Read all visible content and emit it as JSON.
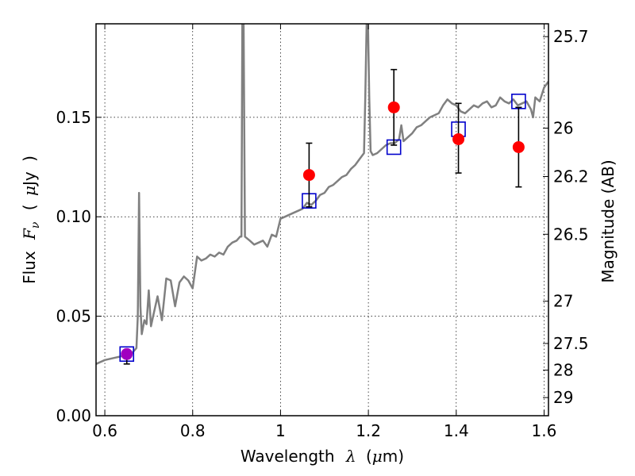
{
  "chart_data": {
    "type": "scatter",
    "xlabel": {
      "prefix": "Wavelength",
      "symbol": "λ",
      "unit_open": "(",
      "unit_mu": "μ",
      "unit_rest": "m)"
    },
    "ylabel": {
      "prefix": "Flux",
      "symbol": "F",
      "subscript": "ν",
      "unit_open": "(",
      "unit_mu": "μ",
      "unit_rest": "Jy",
      "unit_close": ")"
    },
    "y2label": "Magnitude (AB)",
    "xlim": [
      0.58,
      1.61
    ],
    "ylim": [
      0.0,
      0.197
    ],
    "grid": true,
    "x_ticks": [
      {
        "value": 0.6,
        "label": "0.6"
      },
      {
        "value": 0.8,
        "label": "0.8"
      },
      {
        "value": 1.0,
        "label": "1"
      },
      {
        "value": 1.2,
        "label": "1.2"
      },
      {
        "value": 1.4,
        "label": "1.4"
      },
      {
        "value": 1.6,
        "label": "1.6"
      }
    ],
    "y_ticks": [
      {
        "value": 0.0,
        "label": "0.00"
      },
      {
        "value": 0.05,
        "label": "0.05"
      },
      {
        "value": 0.1,
        "label": "0.10"
      },
      {
        "value": 0.15,
        "label": "0.15"
      }
    ],
    "y2_ticks": [
      {
        "value": 25.7,
        "label": "25.7"
      },
      {
        "value": 26.0,
        "label": "26"
      },
      {
        "value": 26.2,
        "label": "26.2"
      },
      {
        "value": 26.5,
        "label": "26.5"
      },
      {
        "value": 27.0,
        "label": "27"
      },
      {
        "value": 27.5,
        "label": "27.5"
      },
      {
        "value": 28.0,
        "label": "28"
      },
      {
        "value": 29.0,
        "label": "29"
      }
    ],
    "spectrum": {
      "color": "#808080",
      "points": [
        [
          0.58,
          0.026
        ],
        [
          0.6,
          0.028
        ],
        [
          0.62,
          0.029
        ],
        [
          0.64,
          0.03
        ],
        [
          0.66,
          0.031
        ],
        [
          0.672,
          0.034
        ],
        [
          0.675,
          0.05
        ],
        [
          0.678,
          0.112
        ],
        [
          0.681,
          0.055
        ],
        [
          0.684,
          0.041
        ],
        [
          0.69,
          0.048
        ],
        [
          0.695,
          0.046
        ],
        [
          0.7,
          0.063
        ],
        [
          0.705,
          0.045
        ],
        [
          0.71,
          0.05
        ],
        [
          0.72,
          0.06
        ],
        [
          0.73,
          0.048
        ],
        [
          0.74,
          0.069
        ],
        [
          0.75,
          0.068
        ],
        [
          0.76,
          0.055
        ],
        [
          0.77,
          0.067
        ],
        [
          0.78,
          0.07
        ],
        [
          0.79,
          0.068
        ],
        [
          0.8,
          0.064
        ],
        [
          0.81,
          0.08
        ],
        [
          0.82,
          0.078
        ],
        [
          0.83,
          0.079
        ],
        [
          0.84,
          0.081
        ],
        [
          0.85,
          0.08
        ],
        [
          0.86,
          0.082
        ],
        [
          0.87,
          0.081
        ],
        [
          0.88,
          0.085
        ],
        [
          0.89,
          0.087
        ],
        [
          0.9,
          0.088
        ],
        [
          0.908,
          0.09
        ],
        [
          0.911,
          0.09
        ],
        [
          0.913,
          0.197
        ],
        [
          0.916,
          0.197
        ],
        [
          0.919,
          0.09
        ],
        [
          0.93,
          0.088
        ],
        [
          0.94,
          0.086
        ],
        [
          0.95,
          0.087
        ],
        [
          0.96,
          0.088
        ],
        [
          0.97,
          0.085
        ],
        [
          0.98,
          0.091
        ],
        [
          0.99,
          0.09
        ],
        [
          1.0,
          0.099
        ],
        [
          1.01,
          0.1
        ],
        [
          1.02,
          0.101
        ],
        [
          1.03,
          0.102
        ],
        [
          1.04,
          0.103
        ],
        [
          1.05,
          0.104
        ],
        [
          1.06,
          0.107
        ],
        [
          1.07,
          0.106
        ],
        [
          1.08,
          0.108
        ],
        [
          1.09,
          0.111
        ],
        [
          1.1,
          0.112
        ],
        [
          1.11,
          0.115
        ],
        [
          1.12,
          0.116
        ],
        [
          1.13,
          0.118
        ],
        [
          1.14,
          0.12
        ],
        [
          1.15,
          0.121
        ],
        [
          1.16,
          0.124
        ],
        [
          1.17,
          0.126
        ],
        [
          1.18,
          0.129
        ],
        [
          1.19,
          0.132
        ],
        [
          1.193,
          0.16
        ],
        [
          1.196,
          0.197
        ],
        [
          1.199,
          0.197
        ],
        [
          1.202,
          0.16
        ],
        [
          1.205,
          0.133
        ],
        [
          1.21,
          0.131
        ],
        [
          1.22,
          0.132
        ],
        [
          1.23,
          0.134
        ],
        [
          1.24,
          0.136
        ],
        [
          1.25,
          0.137
        ],
        [
          1.26,
          0.137
        ],
        [
          1.27,
          0.139
        ],
        [
          1.275,
          0.146
        ],
        [
          1.28,
          0.138
        ],
        [
          1.29,
          0.14
        ],
        [
          1.3,
          0.142
        ],
        [
          1.31,
          0.145
        ],
        [
          1.32,
          0.146
        ],
        [
          1.33,
          0.148
        ],
        [
          1.34,
          0.15
        ],
        [
          1.35,
          0.151
        ],
        [
          1.36,
          0.152
        ],
        [
          1.37,
          0.156
        ],
        [
          1.38,
          0.159
        ],
        [
          1.39,
          0.157
        ],
        [
          1.4,
          0.156
        ],
        [
          1.41,
          0.153
        ],
        [
          1.42,
          0.152
        ],
        [
          1.43,
          0.154
        ],
        [
          1.44,
          0.156
        ],
        [
          1.45,
          0.155
        ],
        [
          1.46,
          0.157
        ],
        [
          1.47,
          0.158
        ],
        [
          1.48,
          0.155
        ],
        [
          1.49,
          0.156
        ],
        [
          1.5,
          0.16
        ],
        [
          1.51,
          0.158
        ],
        [
          1.52,
          0.157
        ],
        [
          1.53,
          0.159
        ],
        [
          1.54,
          0.156
        ],
        [
          1.55,
          0.157
        ],
        [
          1.56,
          0.158
        ],
        [
          1.57,
          0.154
        ],
        [
          1.575,
          0.15
        ],
        [
          1.58,
          0.16
        ],
        [
          1.59,
          0.158
        ],
        [
          1.6,
          0.165
        ],
        [
          1.61,
          0.168
        ]
      ]
    },
    "model_photometry": {
      "color": "#0000cc",
      "points": [
        {
          "x": 0.65,
          "y": 0.031
        },
        {
          "x": 1.065,
          "y": 0.108
        },
        {
          "x": 1.258,
          "y": 0.135
        },
        {
          "x": 1.405,
          "y": 0.144
        },
        {
          "x": 1.542,
          "y": 0.158
        }
      ]
    },
    "observed_photometry": {
      "color": "#ff0000",
      "overlap_color": "#a000c0",
      "points": [
        {
          "x": 0.65,
          "y": 0.031,
          "err_low": 0.005,
          "err_high": 0.002
        },
        {
          "x": 1.065,
          "y": 0.121,
          "err_low": 0.016,
          "err_high": 0.016
        },
        {
          "x": 1.258,
          "y": 0.155,
          "err_low": 0.019,
          "err_high": 0.019
        },
        {
          "x": 1.405,
          "y": 0.139,
          "err_low": 0.017,
          "err_high": 0.018
        },
        {
          "x": 1.542,
          "y": 0.135,
          "err_low": 0.02,
          "err_high": 0.02
        }
      ]
    }
  }
}
